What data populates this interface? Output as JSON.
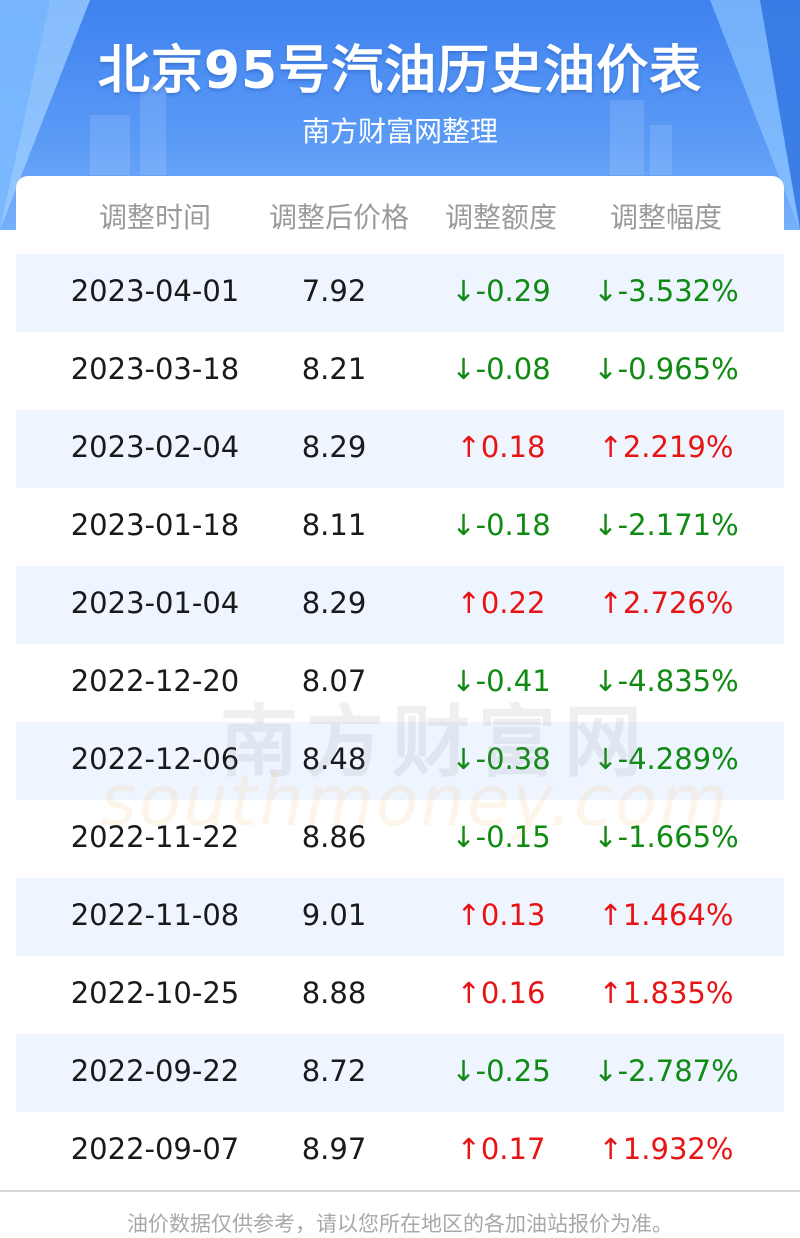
{
  "header": {
    "title": "北京95号汽油历史油价表",
    "subtitle": "南方财富网整理"
  },
  "table": {
    "columns": [
      "调整时间",
      "调整后价格",
      "调整额度",
      "调整幅度"
    ],
    "rows": [
      {
        "date": "2023-04-01",
        "price": "7.92",
        "change": "↓-0.29",
        "percent": "↓-3.532%",
        "direction": "down"
      },
      {
        "date": "2023-03-18",
        "price": "8.21",
        "change": "↓-0.08",
        "percent": "↓-0.965%",
        "direction": "down"
      },
      {
        "date": "2023-02-04",
        "price": "8.29",
        "change": "↑0.18",
        "percent": "↑2.219%",
        "direction": "up"
      },
      {
        "date": "2023-01-18",
        "price": "8.11",
        "change": "↓-0.18",
        "percent": "↓-2.171%",
        "direction": "down"
      },
      {
        "date": "2023-01-04",
        "price": "8.29",
        "change": "↑0.22",
        "percent": "↑2.726%",
        "direction": "up"
      },
      {
        "date": "2022-12-20",
        "price": "8.07",
        "change": "↓-0.41",
        "percent": "↓-4.835%",
        "direction": "down"
      },
      {
        "date": "2022-12-06",
        "price": "8.48",
        "change": "↓-0.38",
        "percent": "↓-4.289%",
        "direction": "down"
      },
      {
        "date": "2022-11-22",
        "price": "8.86",
        "change": "↓-0.15",
        "percent": "↓-1.665%",
        "direction": "down"
      },
      {
        "date": "2022-11-08",
        "price": "9.01",
        "change": "↑0.13",
        "percent": "↑1.464%",
        "direction": "up"
      },
      {
        "date": "2022-10-25",
        "price": "8.88",
        "change": "↑0.16",
        "percent": "↑1.835%",
        "direction": "up"
      },
      {
        "date": "2022-09-22",
        "price": "8.72",
        "change": "↓-0.25",
        "percent": "↓-2.787%",
        "direction": "down"
      },
      {
        "date": "2022-09-07",
        "price": "8.97",
        "change": "↑0.17",
        "percent": "↑1.932%",
        "direction": "up"
      }
    ]
  },
  "watermark": {
    "cn": "南方财富网",
    "en": "southmoney.com"
  },
  "footer": {
    "note": "油价数据仅供参考，请以您所在地区的各加油站报价为准。"
  },
  "colors": {
    "up": "#e81414",
    "down": "#0f8a12",
    "alt_row": "#eef5ff",
    "header_blue": "#3f82f0"
  }
}
